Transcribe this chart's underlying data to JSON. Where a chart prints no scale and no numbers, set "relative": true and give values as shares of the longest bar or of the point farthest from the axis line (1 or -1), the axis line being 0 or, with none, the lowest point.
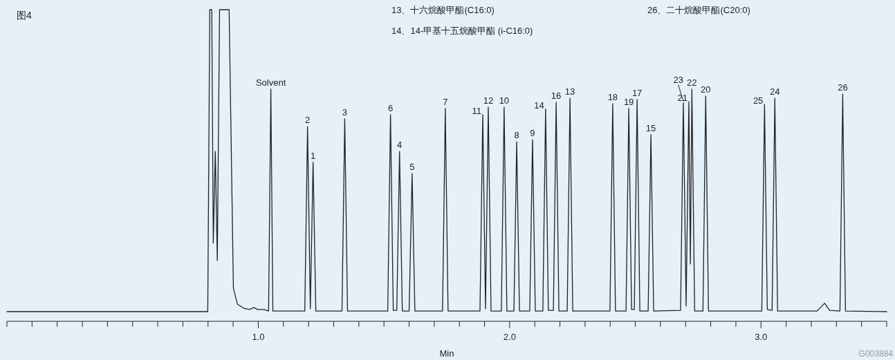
{
  "chart_data": {
    "type": "line",
    "title": "图4",
    "xlabel": "Min",
    "relative": true,
    "grid": false,
    "tick_labels": "x",
    "xlim": [
      0,
      3.5
    ],
    "xticks": [
      {
        "value": 0,
        "label": null
      },
      {
        "value": 0.1,
        "label": null
      },
      {
        "value": 0.2,
        "label": null
      },
      {
        "value": 0.3,
        "label": null
      },
      {
        "value": 0.4,
        "label": null
      },
      {
        "value": 0.5,
        "label": null
      },
      {
        "value": 0.6,
        "label": null
      },
      {
        "value": 0.7,
        "label": null
      },
      {
        "value": 0.8,
        "label": null
      },
      {
        "value": 0.9,
        "label": null
      },
      {
        "value": 1,
        "label": "1.0"
      },
      {
        "value": 1.1,
        "label": null
      },
      {
        "value": 1.2,
        "label": null
      },
      {
        "value": 1.3,
        "label": null
      },
      {
        "value": 1.4,
        "label": null
      },
      {
        "value": 1.5,
        "label": null
      },
      {
        "value": 1.6,
        "label": null
      },
      {
        "value": 1.7,
        "label": null
      },
      {
        "value": 1.8,
        "label": null
      },
      {
        "value": 1.9,
        "label": null
      },
      {
        "value": 2,
        "label": "2.0"
      },
      {
        "value": 2.1,
        "label": null
      },
      {
        "value": 2.2,
        "label": null
      },
      {
        "value": 2.3,
        "label": null
      },
      {
        "value": 2.4,
        "label": null
      },
      {
        "value": 2.5,
        "label": null
      },
      {
        "value": 2.6,
        "label": null
      },
      {
        "value": 2.7,
        "label": null
      },
      {
        "value": 2.8,
        "label": null
      },
      {
        "value": 2.9,
        "label": null
      },
      {
        "value": 3,
        "label": "3.0"
      },
      {
        "value": 3.1,
        "label": null
      },
      {
        "value": 3.2,
        "label": null
      },
      {
        "value": 3.3,
        "label": null
      },
      {
        "value": 3.4,
        "label": null
      },
      {
        "value": 3.5,
        "label": null
      }
    ],
    "x": [
      0,
      0.799,
      0.807,
      0.815,
      0.821,
      0.829,
      0.837,
      0.846,
      0.884,
      0.901,
      0.917,
      0.942,
      0.964,
      0.983,
      0.997,
      1.022,
      1.041,
      1.05,
      1.058,
      1.185,
      1.196,
      1.207,
      1.218,
      1.229,
      1.333,
      1.344,
      1.355,
      1.515,
      1.526,
      1.537,
      1.551,
      1.562,
      1.573,
      1.6,
      1.612,
      1.623,
      1.733,
      1.744,
      1.755,
      1.882,
      1.893,
      1.904,
      1.915,
      1.926,
      1.967,
      1.978,
      1.989,
      2.017,
      2.028,
      2.039,
      2.08,
      2.091,
      2.102,
      2.132,
      2.143,
      2.154,
      2.174,
      2.185,
      2.196,
      2.229,
      2.24,
      2.251,
      2.399,
      2.41,
      2.421,
      2.463,
      2.474,
      2.485,
      2.496,
      2.507,
      2.518,
      2.551,
      2.562,
      2.573,
      2.68,
      2.691,
      2.702,
      2.713,
      2.719,
      2.725,
      2.736,
      2.769,
      2.78,
      2.791,
      3.003,
      3.014,
      3.025,
      3.044,
      3.055,
      3.066,
      3.223,
      3.253,
      3.273,
      3.314,
      3.325,
      3.336,
      3.5
    ],
    "series": [
      {
        "color": "#222222",
        "values": [
          0.031,
          0.031,
          1.0,
          1.0,
          0.251,
          0.545,
          0.195,
          1.0,
          1.0,
          0.106,
          0.055,
          0.042,
          0.038,
          0.044,
          0.038,
          0.038,
          0.033,
          0.745,
          0.033,
          0.033,
          0.625,
          0.04,
          0.51,
          0.033,
          0.033,
          0.65,
          0.033,
          0.033,
          0.663,
          0.035,
          0.035,
          0.545,
          0.033,
          0.033,
          0.475,
          0.033,
          0.033,
          0.683,
          0.033,
          0.033,
          0.663,
          0.04,
          0.687,
          0.033,
          0.033,
          0.687,
          0.033,
          0.033,
          0.576,
          0.033,
          0.033,
          0.583,
          0.033,
          0.033,
          0.681,
          0.035,
          0.035,
          0.703,
          0.033,
          0.033,
          0.716,
          0.033,
          0.033,
          0.698,
          0.033,
          0.033,
          0.683,
          0.038,
          0.038,
          0.712,
          0.033,
          0.033,
          0.599,
          0.033,
          0.035,
          0.701,
          0.049,
          0.705,
          0.184,
          0.745,
          0.033,
          0.033,
          0.723,
          0.033,
          0.033,
          0.696,
          0.038,
          0.035,
          0.716,
          0.033,
          0.033,
          0.058,
          0.035,
          0.033,
          0.729,
          0.033,
          0.031
        ]
      }
    ],
    "annotations": [
      "13、十六烷酸甲酯(C16:0)",
      "26、二十烷酸甲酯(C20:0)",
      "14、14-甲基十五烷酸甲酯 (i-C16:0)",
      {
        "text": "Solvent",
        "x": 1.05,
        "y": 0.745
      },
      {
        "text": "2",
        "x": 1.196,
        "y": 0.625
      },
      {
        "text": "1",
        "x": 1.218,
        "y": 0.51
      },
      {
        "text": "3",
        "x": 1.344,
        "y": 0.65
      },
      {
        "text": "6",
        "x": 1.526,
        "y": 0.663
      },
      {
        "text": "4",
        "x": 1.562,
        "y": 0.545
      },
      {
        "text": "5",
        "x": 1.612,
        "y": 0.475
      },
      {
        "text": "7",
        "x": 1.744,
        "y": 0.683
      },
      {
        "text": "11",
        "x": 1.893,
        "y": 0.663
      },
      {
        "text": "12",
        "x": 1.915,
        "y": 0.687
      },
      {
        "text": "10",
        "x": 1.978,
        "y": 0.687
      },
      {
        "text": "8",
        "x": 2.028,
        "y": 0.576
      },
      {
        "text": "9",
        "x": 2.091,
        "y": 0.583
      },
      {
        "text": "14",
        "x": 2.143,
        "y": 0.681
      },
      {
        "text": "16",
        "x": 2.185,
        "y": 0.703
      },
      {
        "text": "13",
        "x": 2.24,
        "y": 0.716
      },
      {
        "text": "18",
        "x": 2.41,
        "y": 0.698
      },
      {
        "text": "19",
        "x": 2.474,
        "y": 0.683
      },
      {
        "text": "17",
        "x": 2.507,
        "y": 0.712
      },
      {
        "text": "15",
        "x": 2.562,
        "y": 0.599
      },
      {
        "text": "23",
        "x": 2.691,
        "y": 0.701
      },
      {
        "text": "21",
        "x": 2.713,
        "y": 0.705
      },
      {
        "text": "22",
        "x": 2.725,
        "y": 0.745
      },
      {
        "text": "20",
        "x": 2.78,
        "y": 0.723
      },
      {
        "text": "25",
        "x": 3.014,
        "y": 0.696
      },
      {
        "text": "24",
        "x": 3.055,
        "y": 0.716
      },
      {
        "text": "26",
        "x": 3.325,
        "y": 0.729
      },
      "G003884"
    ]
  }
}
